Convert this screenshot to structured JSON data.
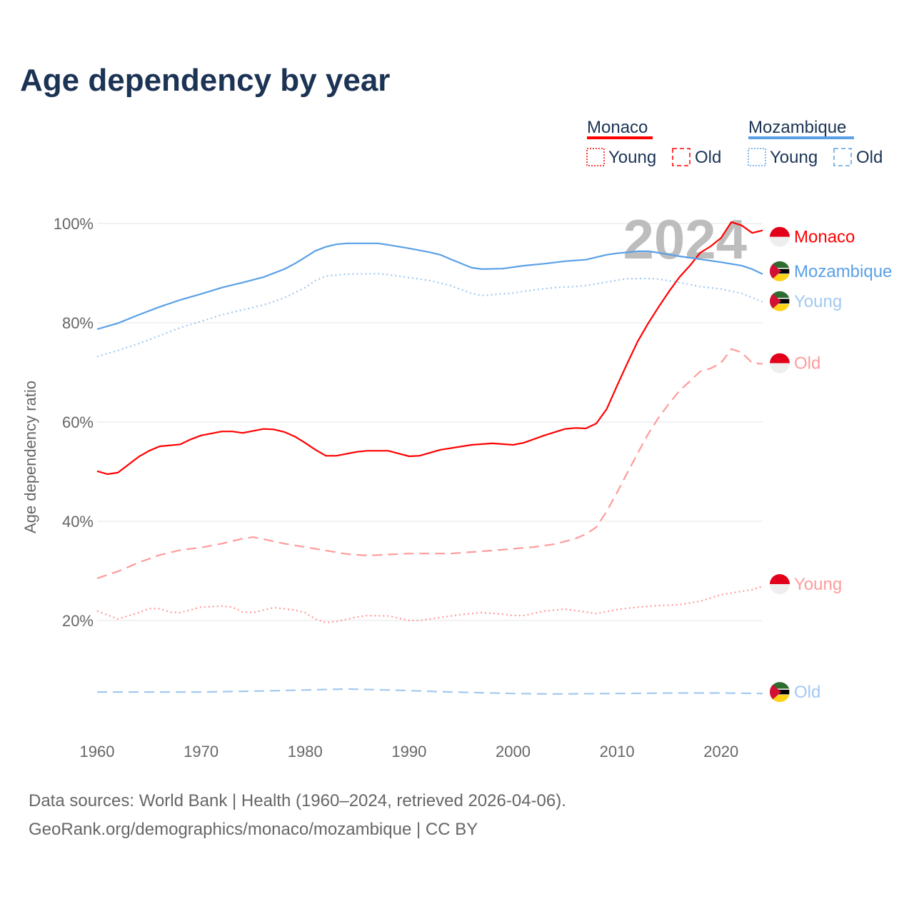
{
  "title": "Age dependency by year",
  "legend": {
    "groups": [
      {
        "name": "Monaco",
        "color": "#ff0000",
        "light": "#ff0000",
        "young": "Young",
        "old": "Old"
      },
      {
        "name": "Mozambique",
        "color": "#5aa0e6",
        "light": "#5aa0e6",
        "young": "Young",
        "old": "Old"
      }
    ]
  },
  "year_watermark": "2024",
  "footer": {
    "line1": "Data sources: World Bank | Health (1960–2024, retrieved 2026-04-06).",
    "line2": "GeoRank.org/demographics/monaco/mozambique | CC BY"
  },
  "chart_data": {
    "type": "line",
    "title": "Age dependency by year",
    "xlabel": "",
    "ylabel": "Age dependency ratio",
    "xlim": [
      1960,
      2024
    ],
    "ylim": [
      0,
      100
    ],
    "xticks": [
      1960,
      1970,
      1980,
      1990,
      2000,
      2010,
      2020
    ],
    "xtick_labels": [
      "1960",
      "1970",
      "1980",
      "1990",
      "2000",
      "2010",
      "2020"
    ],
    "yticks": [
      20,
      40,
      60,
      80,
      100
    ],
    "ytick_labels": [
      "20%",
      "40%",
      "60%",
      "80%",
      "100%"
    ],
    "grid": true,
    "legend_position": "top-right",
    "series": [
      {
        "name": "Monaco",
        "label": "Monaco",
        "country": "monaco",
        "color": "#ff0000",
        "style": "solid",
        "x": [
          1960,
          1961,
          1962,
          1964,
          1965,
          1966,
          1968,
          1969,
          1970,
          1972,
          1973,
          1974,
          1976,
          1977,
          1978,
          1979,
          1980,
          1981,
          1982,
          1983,
          1985,
          1986,
          1988,
          1990,
          1991,
          1993,
          1996,
          1998,
          2000,
          2001,
          2003,
          2005,
          2006,
          2007,
          2008,
          2009,
          2010,
          2011,
          2012,
          2013,
          2014,
          2015,
          2016,
          2017,
          2018,
          2019,
          2020,
          2021,
          2022,
          2023,
          2024
        ],
        "y": [
          50.1,
          49.5,
          49.8,
          53,
          54.2,
          55.1,
          55.5,
          56.5,
          57.3,
          58.1,
          58.1,
          57.8,
          58.6,
          58.5,
          58,
          57.1,
          55.8,
          54.4,
          53.2,
          53.2,
          54,
          54.2,
          54.2,
          53.1,
          53.2,
          54.4,
          55.4,
          55.7,
          55.4,
          55.8,
          57.3,
          58.6,
          58.8,
          58.7,
          59.7,
          62.6,
          67.3,
          71.9,
          76.3,
          79.9,
          83.2,
          86.3,
          89.2,
          91.5,
          94.1,
          95.4,
          97.1,
          100.3,
          99.6,
          98.1,
          98.6
        ]
      },
      {
        "name": "Monaco Old",
        "label": "Old",
        "country": "monaco",
        "color": "#ff9b9b",
        "style": "dashed",
        "x": [
          1960,
          1962,
          1964,
          1966,
          1968,
          1970,
          1972,
          1974,
          1975,
          1976,
          1978,
          1980,
          1982,
          1984,
          1986,
          1988,
          1990,
          1994,
          1998,
          2002,
          2004,
          2006,
          2007,
          2008,
          2009,
          2010,
          2011,
          2012,
          2013,
          2014,
          2015,
          2016,
          2017,
          2018,
          2019,
          2020,
          2021,
          2022,
          2023,
          2024
        ],
        "y": [
          28.5,
          29.9,
          31.7,
          33.2,
          34.2,
          34.7,
          35.5,
          36.5,
          36.8,
          36.4,
          35.5,
          34.8,
          34.1,
          33.4,
          33.1,
          33.3,
          33.5,
          33.5,
          34.1,
          34.8,
          35.4,
          36.5,
          37.4,
          38.8,
          42,
          45.8,
          49.8,
          53.8,
          57.6,
          60.9,
          63.7,
          66.3,
          68.2,
          70.2,
          70.8,
          71.9,
          74.7,
          74,
          71.9,
          71.7
        ]
      },
      {
        "name": "Monaco Young",
        "label": "Young",
        "country": "monaco",
        "color": "#ff9b9b",
        "style": "dotted",
        "x": [
          1960,
          1962,
          1964,
          1965,
          1966,
          1967,
          1968,
          1970,
          1972,
          1973,
          1974,
          1975,
          1977,
          1979,
          1980,
          1981,
          1982,
          1983,
          1985,
          1986,
          1988,
          1990,
          1991,
          1993,
          1995,
          1997,
          1999,
          2000,
          2001,
          2003,
          2005,
          2007,
          2008,
          2010,
          2012,
          2014,
          2016,
          2018,
          2020,
          2022,
          2023,
          2024
        ],
        "y": [
          21.9,
          20.3,
          21.6,
          22.4,
          22.4,
          21.7,
          21.6,
          22.7,
          22.9,
          22.7,
          21.7,
          21.6,
          22.6,
          22.1,
          21.6,
          20.3,
          19.6,
          19.8,
          20.7,
          21,
          20.9,
          20,
          20,
          20.6,
          21.2,
          21.6,
          21.3,
          21,
          21,
          21.9,
          22.3,
          21.7,
          21.4,
          22.2,
          22.7,
          23,
          23.2,
          23.9,
          25.2,
          25.9,
          26.2,
          26.9
        ]
      },
      {
        "name": "Mozambique",
        "label": "Mozambique",
        "country": "mozambique",
        "color": "#5aa0e6",
        "style": "solid",
        "x": [
          1960,
          1962,
          1964,
          1966,
          1968,
          1970,
          1972,
          1974,
          1976,
          1978,
          1979,
          1980,
          1981,
          1982,
          1983,
          1984,
          1987,
          1988,
          1990,
          1992,
          1993,
          1994,
          1996,
          1997,
          1999,
          2001,
          2003,
          2005,
          2007,
          2009,
          2010,
          2012,
          2013,
          2014,
          2016,
          2018,
          2020,
          2022,
          2023,
          2024
        ],
        "y": [
          78.7,
          79.9,
          81.6,
          83.2,
          84.6,
          85.8,
          87.1,
          88.1,
          89.2,
          90.8,
          91.9,
          93.2,
          94.5,
          95.3,
          95.8,
          96,
          96,
          95.7,
          95,
          94.2,
          93.7,
          92.8,
          91.1,
          90.8,
          90.9,
          91.5,
          91.9,
          92.4,
          92.7,
          93.7,
          94,
          94.4,
          94.4,
          94.1,
          93.4,
          92.8,
          92.2,
          91.5,
          90.8,
          89.8
        ]
      },
      {
        "name": "Mozambique Young",
        "label": "Young",
        "country": "mozambique",
        "color": "#a3c9f1",
        "style": "dotted",
        "x": [
          1960,
          1962,
          1964,
          1966,
          1968,
          1970,
          1972,
          1974,
          1976,
          1978,
          1980,
          1981,
          1982,
          1984,
          1987,
          1988,
          1990,
          1992,
          1994,
          1996,
          1997,
          2000,
          2002,
          2004,
          2006,
          2007,
          2009,
          2011,
          2013,
          2014,
          2016,
          2018,
          2020,
          2022,
          2024
        ],
        "y": [
          73.2,
          74.4,
          75.8,
          77.4,
          79,
          80.3,
          81.6,
          82.6,
          83.6,
          85,
          87.1,
          88.5,
          89.4,
          89.8,
          89.9,
          89.7,
          89.1,
          88.5,
          87.5,
          85.9,
          85.5,
          86,
          86.6,
          87.1,
          87.3,
          87.5,
          88.2,
          88.9,
          88.9,
          88.8,
          88.1,
          87.3,
          86.8,
          85.9,
          84.2
        ]
      },
      {
        "name": "Mozambique Old",
        "label": "Old",
        "country": "mozambique",
        "color": "#a3c9f1",
        "style": "dashed",
        "x": [
          1960,
          1970,
          1976,
          1980,
          1984,
          1988,
          1994,
          2000,
          2004,
          2010,
          2016,
          2020,
          2024
        ],
        "y": [
          5.6,
          5.6,
          5.8,
          6,
          6.2,
          6,
          5.6,
          5.3,
          5.2,
          5.3,
          5.4,
          5.4,
          5.3
        ]
      }
    ]
  }
}
